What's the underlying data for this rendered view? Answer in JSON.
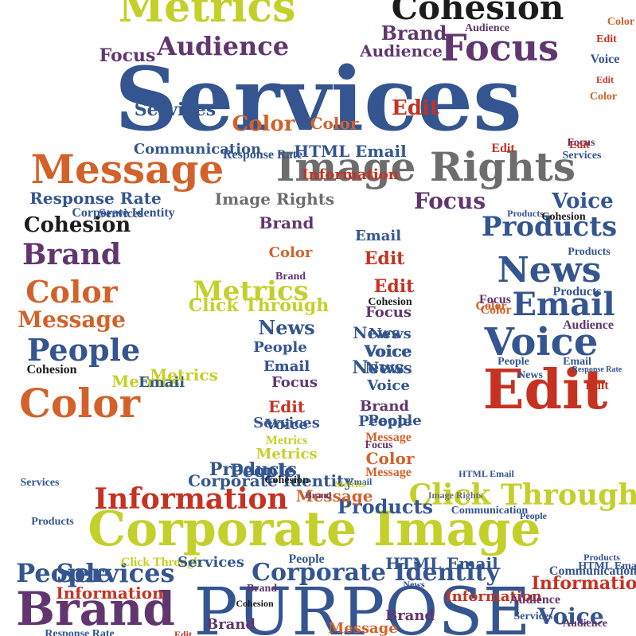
{
  "palette": {
    "blue": "#34558f",
    "orange": "#d2622a",
    "lime": "#c4d02a",
    "purple": "#61366f",
    "red": "#c53222",
    "gray": "#6d6d6d",
    "black": "#1c1c1c"
  },
  "words": [
    {
      "text": "Services",
      "color": "blue"
    },
    {
      "text": "Corporate Image",
      "color": "lime"
    },
    {
      "text": "Image Rights",
      "color": "gray"
    },
    {
      "text": "Message",
      "color": "orange"
    },
    {
      "text": "Metrics",
      "color": "lime"
    },
    {
      "text": "Cohesion",
      "color": "black"
    },
    {
      "text": "PURPOSE",
      "color": "blue"
    },
    {
      "text": "Brand",
      "color": "purple"
    },
    {
      "text": "Edit",
      "color": "red"
    },
    {
      "text": "Focus",
      "color": "purple"
    },
    {
      "text": "Audience",
      "color": "purple"
    },
    {
      "text": "Information",
      "color": "red"
    },
    {
      "text": "Click Through",
      "color": "lime"
    },
    {
      "text": "Corporate Identity",
      "color": "blue"
    },
    {
      "text": "Products",
      "color": "blue"
    },
    {
      "text": "News",
      "color": "blue"
    },
    {
      "text": "Voice",
      "color": "blue"
    },
    {
      "text": "Email",
      "color": "blue"
    },
    {
      "text": "People",
      "color": "blue"
    },
    {
      "text": "Color",
      "color": "orange"
    },
    {
      "text": "HTML Email",
      "color": "blue"
    },
    {
      "text": "Response Rate",
      "color": "blue"
    },
    {
      "text": "Communication",
      "color": "blue"
    },
    {
      "text": "Brand",
      "color": "purple"
    },
    {
      "text": "Color",
      "color": "orange"
    },
    {
      "text": "Message",
      "color": "orange"
    },
    {
      "text": "People",
      "color": "blue"
    },
    {
      "text": "Color",
      "color": "orange"
    },
    {
      "text": "Products",
      "color": "blue"
    },
    {
      "text": "News",
      "color": "blue"
    },
    {
      "text": "Email",
      "color": "blue"
    },
    {
      "text": "Voice",
      "color": "blue"
    },
    {
      "text": "Edit",
      "color": "red"
    },
    {
      "text": "Focus",
      "color": "purple"
    },
    {
      "text": "Information",
      "color": "red"
    },
    {
      "text": "Brand",
      "color": "purple"
    },
    {
      "text": "Services",
      "color": "blue"
    },
    {
      "text": "Products",
      "color": "blue"
    },
    {
      "text": "Focus",
      "color": "purple"
    },
    {
      "text": "Audience",
      "color": "purple"
    },
    {
      "text": "Image Rights",
      "color": "gray"
    },
    {
      "text": "Response Rate",
      "color": "blue"
    },
    {
      "text": "Cohesion",
      "color": "black"
    },
    {
      "text": "Metrics",
      "color": "lime"
    },
    {
      "text": "Click Through",
      "color": "lime"
    },
    {
      "text": "Corporate Identity",
      "color": "blue"
    },
    {
      "text": "News",
      "color": "blue"
    },
    {
      "text": "Color",
      "color": "orange"
    },
    {
      "text": "Color",
      "color": "orange"
    },
    {
      "text": "Edit",
      "color": "red"
    },
    {
      "text": "Services",
      "color": "blue"
    },
    {
      "text": "People",
      "color": "blue"
    },
    {
      "text": "Voice",
      "color": "blue"
    },
    {
      "text": "Email",
      "color": "blue"
    },
    {
      "text": "Metrics",
      "color": "lime"
    },
    {
      "text": "News",
      "color": "blue"
    },
    {
      "text": "Email",
      "color": "blue"
    },
    {
      "text": "Focus",
      "color": "purple"
    },
    {
      "text": "Edit",
      "color": "red"
    },
    {
      "text": "Voice",
      "color": "blue"
    },
    {
      "text": "Metrics",
      "color": "lime"
    },
    {
      "text": "Metrics",
      "color": "lime"
    },
    {
      "text": "People",
      "color": "blue"
    },
    {
      "text": "Email",
      "color": "blue"
    },
    {
      "text": "People",
      "color": "blue"
    },
    {
      "text": "Services",
      "color": "blue"
    },
    {
      "text": "Edit",
      "color": "red"
    },
    {
      "text": "Cohesion",
      "color": "black"
    },
    {
      "text": "Focus",
      "color": "purple"
    },
    {
      "text": "News",
      "color": "blue"
    },
    {
      "text": "Voice",
      "color": "blue"
    },
    {
      "text": "News",
      "color": "blue"
    },
    {
      "text": "Voice",
      "color": "blue"
    },
    {
      "text": "Brand",
      "color": "purple"
    },
    {
      "text": "People",
      "color": "blue"
    },
    {
      "text": "Message",
      "color": "orange"
    },
    {
      "text": "Focus",
      "color": "purple"
    },
    {
      "text": "Color",
      "color": "orange"
    },
    {
      "text": "Message",
      "color": "orange"
    },
    {
      "text": "Brand",
      "color": "purple"
    },
    {
      "text": "Services",
      "color": "blue"
    },
    {
      "text": "Information",
      "color": "red"
    },
    {
      "text": "Products",
      "color": "blue"
    },
    {
      "text": "Voice",
      "color": "blue"
    },
    {
      "text": "Cohesion",
      "color": "black"
    },
    {
      "text": "Edit",
      "color": "red"
    },
    {
      "text": "News",
      "color": "blue"
    },
    {
      "text": "People",
      "color": "blue"
    },
    {
      "text": "Email",
      "color": "blue"
    },
    {
      "text": "Brand",
      "color": "purple"
    },
    {
      "text": "Products",
      "color": "blue"
    },
    {
      "text": "Audience",
      "color": "purple"
    },
    {
      "text": "Message",
      "color": "orange"
    },
    {
      "text": "Metrics",
      "color": "lime"
    },
    {
      "text": "Communication",
      "color": "blue"
    },
    {
      "text": "HTML Email",
      "color": "blue"
    },
    {
      "text": "Cohesion",
      "color": "black"
    },
    {
      "text": "Services",
      "color": "blue"
    },
    {
      "text": "Focus",
      "color": "purple"
    },
    {
      "text": "Color",
      "color": "orange"
    },
    {
      "text": "Edit",
      "color": "red"
    },
    {
      "text": "Products",
      "color": "blue"
    },
    {
      "text": "Brand",
      "color": "purple"
    },
    {
      "text": "Email",
      "color": "blue"
    },
    {
      "text": "Audience",
      "color": "purple"
    },
    {
      "text": "Color",
      "color": "orange"
    },
    {
      "text": "Voice",
      "color": "blue"
    },
    {
      "text": "Edit",
      "color": "red"
    },
    {
      "text": "Color",
      "color": "orange"
    },
    {
      "text": "Edit",
      "color": "red"
    },
    {
      "text": "Color",
      "color": "orange"
    },
    {
      "text": "Focus",
      "color": "purple"
    },
    {
      "text": "Edit",
      "color": "red"
    },
    {
      "text": "Information",
      "color": "red"
    },
    {
      "text": "Response Rate",
      "color": "blue"
    },
    {
      "text": "Services",
      "color": "blue"
    },
    {
      "text": "HTML Email",
      "color": "blue"
    },
    {
      "text": "Image Rights",
      "color": "gray"
    },
    {
      "text": "Cohesion",
      "color": "black"
    },
    {
      "text": "Products",
      "color": "blue"
    },
    {
      "text": "Corporate Identity",
      "color": "blue"
    },
    {
      "text": "Click Through",
      "color": "lime"
    },
    {
      "text": "People",
      "color": "blue"
    },
    {
      "text": "Brand",
      "color": "purple"
    },
    {
      "text": "Services",
      "color": "blue"
    },
    {
      "text": "Metrics",
      "color": "lime"
    },
    {
      "text": "Communication",
      "color": "blue"
    },
    {
      "text": "HTML Email",
      "color": "blue"
    },
    {
      "text": "Information",
      "color": "red"
    },
    {
      "text": "Brand",
      "color": "purple"
    },
    {
      "text": "Message",
      "color": "orange"
    },
    {
      "text": "Audience",
      "color": "purple"
    },
    {
      "text": "Brand",
      "color": "purple"
    },
    {
      "text": "Products",
      "color": "blue"
    },
    {
      "text": "Edit",
      "color": "red"
    },
    {
      "text": "News",
      "color": "blue"
    },
    {
      "text": "Cohesion",
      "color": "black"
    },
    {
      "text": "People",
      "color": "blue"
    },
    {
      "text": "Audience",
      "color": "purple"
    },
    {
      "text": "Services",
      "color": "blue"
    },
    {
      "text": "Response Rate",
      "color": "blue"
    },
    {
      "text": "Image Rights",
      "color": "gray"
    },
    {
      "text": "Corporate Identity",
      "color": "blue"
    },
    {
      "text": "Products",
      "color": "blue"
    },
    {
      "text": "Cohesion",
      "color": "black"
    },
    {
      "text": "Voice",
      "color": "blue"
    },
    {
      "text": "Message",
      "color": "orange"
    }
  ]
}
